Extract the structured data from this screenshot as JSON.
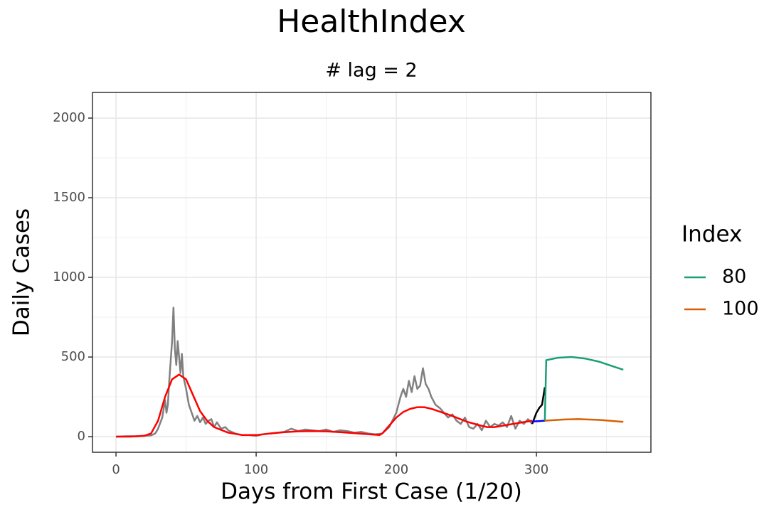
{
  "chart_data": {
    "type": "line",
    "title": "HealthIndex",
    "subtitle": "# lag = 2",
    "x_label": "Days from First Case (1/20)",
    "y_label": "Daily Cases",
    "legend_title": "Index",
    "legend_position": "right",
    "grid": true,
    "xlim": [
      -16.8,
      381.7
    ],
    "ylim": [
      -98,
      2161
    ],
    "xticks": [
      0,
      100,
      200,
      300
    ],
    "yticks": [
      0,
      500,
      1000,
      1500,
      2000
    ],
    "series": [
      {
        "color": "#808080",
        "x": [
          0,
          5,
          10,
          15,
          20,
          25,
          28,
          30,
          33,
          35,
          36,
          37,
          38,
          40,
          41,
          42,
          43,
          44,
          45,
          46,
          47,
          48,
          50,
          52,
          54,
          56,
          58,
          60,
          62,
          64,
          66,
          68,
          70,
          72,
          75,
          78,
          80,
          85,
          90,
          95,
          100,
          105,
          110,
          115,
          120,
          125,
          130,
          135,
          140,
          145,
          150,
          155,
          160,
          165,
          170,
          175,
          180,
          185,
          190,
          195,
          200,
          203,
          205,
          207,
          209,
          211,
          213,
          215,
          217,
          219,
          221,
          223,
          225,
          228,
          231,
          234,
          237,
          240,
          243,
          246,
          249,
          252,
          255,
          258,
          261,
          264,
          267,
          270,
          273,
          276,
          279,
          282,
          285,
          288,
          291,
          294,
          297
        ],
        "values": [
          0,
          2,
          3,
          2,
          5,
          8,
          20,
          50,
          120,
          230,
          150,
          200,
          350,
          600,
          810,
          550,
          450,
          600,
          500,
          400,
          520,
          380,
          300,
          200,
          150,
          100,
          130,
          90,
          120,
          80,
          100,
          110,
          60,
          90,
          50,
          60,
          40,
          20,
          10,
          10,
          5,
          15,
          20,
          25,
          30,
          50,
          35,
          45,
          40,
          35,
          45,
          30,
          40,
          35,
          25,
          30,
          20,
          15,
          20,
          60,
          150,
          250,
          300,
          250,
          350,
          280,
          380,
          300,
          320,
          430,
          330,
          300,
          250,
          200,
          180,
          150,
          120,
          140,
          100,
          80,
          120,
          60,
          50,
          80,
          40,
          100,
          60,
          80,
          70,
          90,
          60,
          130,
          50,
          100,
          80,
          110,
          80
        ]
      },
      {
        "color": "#ff0000",
        "x": [
          0,
          10,
          20,
          25,
          30,
          35,
          40,
          45,
          50,
          55,
          60,
          65,
          70,
          80,
          90,
          100,
          110,
          120,
          130,
          140,
          150,
          160,
          170,
          180,
          188,
          190,
          195,
          200,
          205,
          210,
          215,
          220,
          225,
          230,
          240,
          250,
          260,
          265,
          270,
          280,
          290,
          297
        ],
        "values": [
          0,
          0,
          5,
          20,
          100,
          250,
          360,
          390,
          360,
          260,
          160,
          100,
          60,
          25,
          10,
          10,
          20,
          28,
          33,
          35,
          33,
          28,
          22,
          15,
          10,
          20,
          70,
          120,
          155,
          175,
          185,
          185,
          175,
          160,
          130,
          95,
          70,
          60,
          60,
          75,
          90,
          100
        ]
      },
      {
        "color": "#000000",
        "x": [
          297,
          300,
          302,
          304,
          306
        ],
        "values": [
          80,
          150,
          180,
          200,
          310
        ]
      },
      {
        "color": "#0000ff",
        "x": [
          297,
          306
        ],
        "values": [
          95,
          100
        ]
      },
      {
        "name": "80",
        "color": "#1b9e77",
        "x": [
          306,
          307,
          315,
          325,
          335,
          345,
          355,
          362
        ],
        "values": [
          100,
          480,
          495,
          500,
          490,
          470,
          440,
          420
        ]
      },
      {
        "name": "100",
        "color": "#d95f02",
        "x": [
          306,
          320,
          330,
          345,
          362
        ],
        "values": [
          100,
          108,
          110,
          105,
          93
        ]
      }
    ]
  }
}
